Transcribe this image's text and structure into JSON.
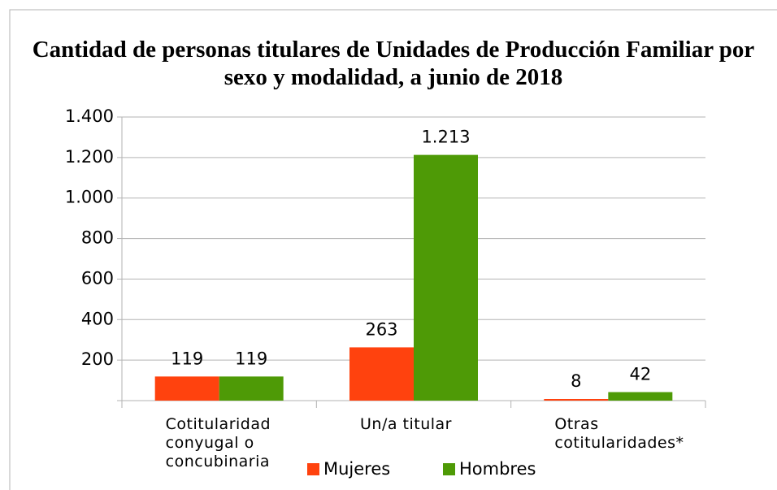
{
  "chart_data": {
    "type": "bar",
    "title": "Cantidad de personas titulares de Unidades de Producción Familiar por sexo y modalidad, a junio de 2018",
    "categories": [
      "Cotitularidad conyugal o concubinaria",
      "Un/a titular",
      "Otras cotitularidades*"
    ],
    "series": [
      {
        "name": "Mujeres",
        "color": "#ff420e",
        "values": [
          119,
          263,
          8
        ]
      },
      {
        "name": "Hombres",
        "color": "#4e9a06",
        "values": [
          119,
          1213,
          42
        ],
        "value_labels": [
          "119",
          "1.213",
          "42"
        ]
      }
    ],
    "ylim": [
      0,
      1400
    ],
    "yticks": [
      200,
      400,
      600,
      800,
      {
        "value": 1000,
        "label": "1.000"
      },
      {
        "value": 1200,
        "label": "1.200"
      },
      {
        "value": 1400,
        "label": "1.400"
      }
    ],
    "grid": true,
    "legend": "bottom"
  }
}
